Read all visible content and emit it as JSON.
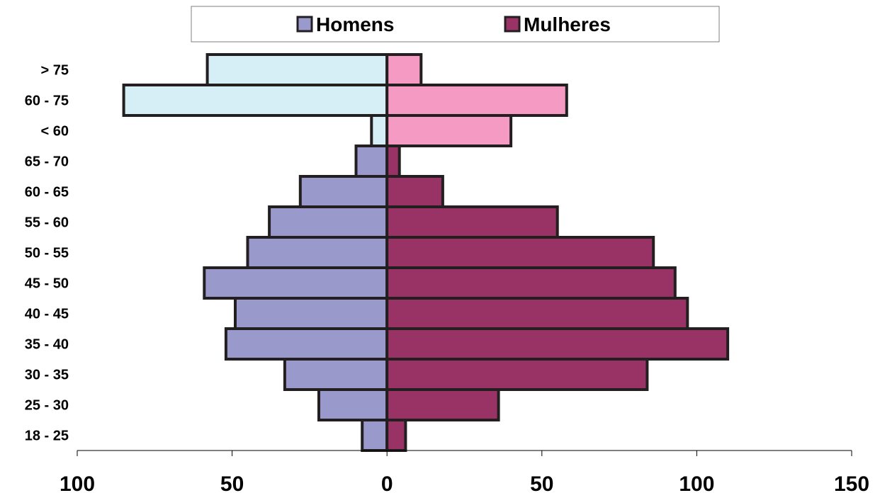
{
  "chart_data": {
    "type": "bar",
    "orientation": "horizontal",
    "layout": "population-pyramid",
    "categories": [
      "18 - 25",
      "25 - 30",
      "30 - 35",
      "35 - 40",
      "40 - 45",
      "45 - 50",
      "50 - 55",
      "55 - 60",
      "60 - 65",
      "65 - 70",
      "< 60",
      "60 - 75",
      "> 75"
    ],
    "series": [
      {
        "name": "Homens",
        "side": "left",
        "color": "#9999cc",
        "alt_color": "#d6eef5",
        "values": [
          8,
          22,
          33,
          52,
          49,
          59,
          45,
          38,
          28,
          10,
          5,
          85,
          58
        ]
      },
      {
        "name": "Mulheres",
        "side": "right",
        "color": "#993366",
        "alt_color": "#f59ac3",
        "values": [
          6,
          36,
          84,
          110,
          97,
          93,
          86,
          55,
          18,
          4,
          40,
          58,
          11
        ]
      }
    ],
    "alt_color_categories": [
      "< 60",
      "60 - 75",
      "> 75"
    ],
    "xlim": [
      -100,
      150
    ],
    "x_ticks": [
      -100,
      -50,
      0,
      50,
      100,
      150
    ],
    "x_tick_labels": [
      "100",
      "50",
      "0",
      "50",
      "100",
      "150"
    ],
    "grid": false,
    "legend": "top-center",
    "title": "",
    "xlabel": "",
    "ylabel": ""
  }
}
